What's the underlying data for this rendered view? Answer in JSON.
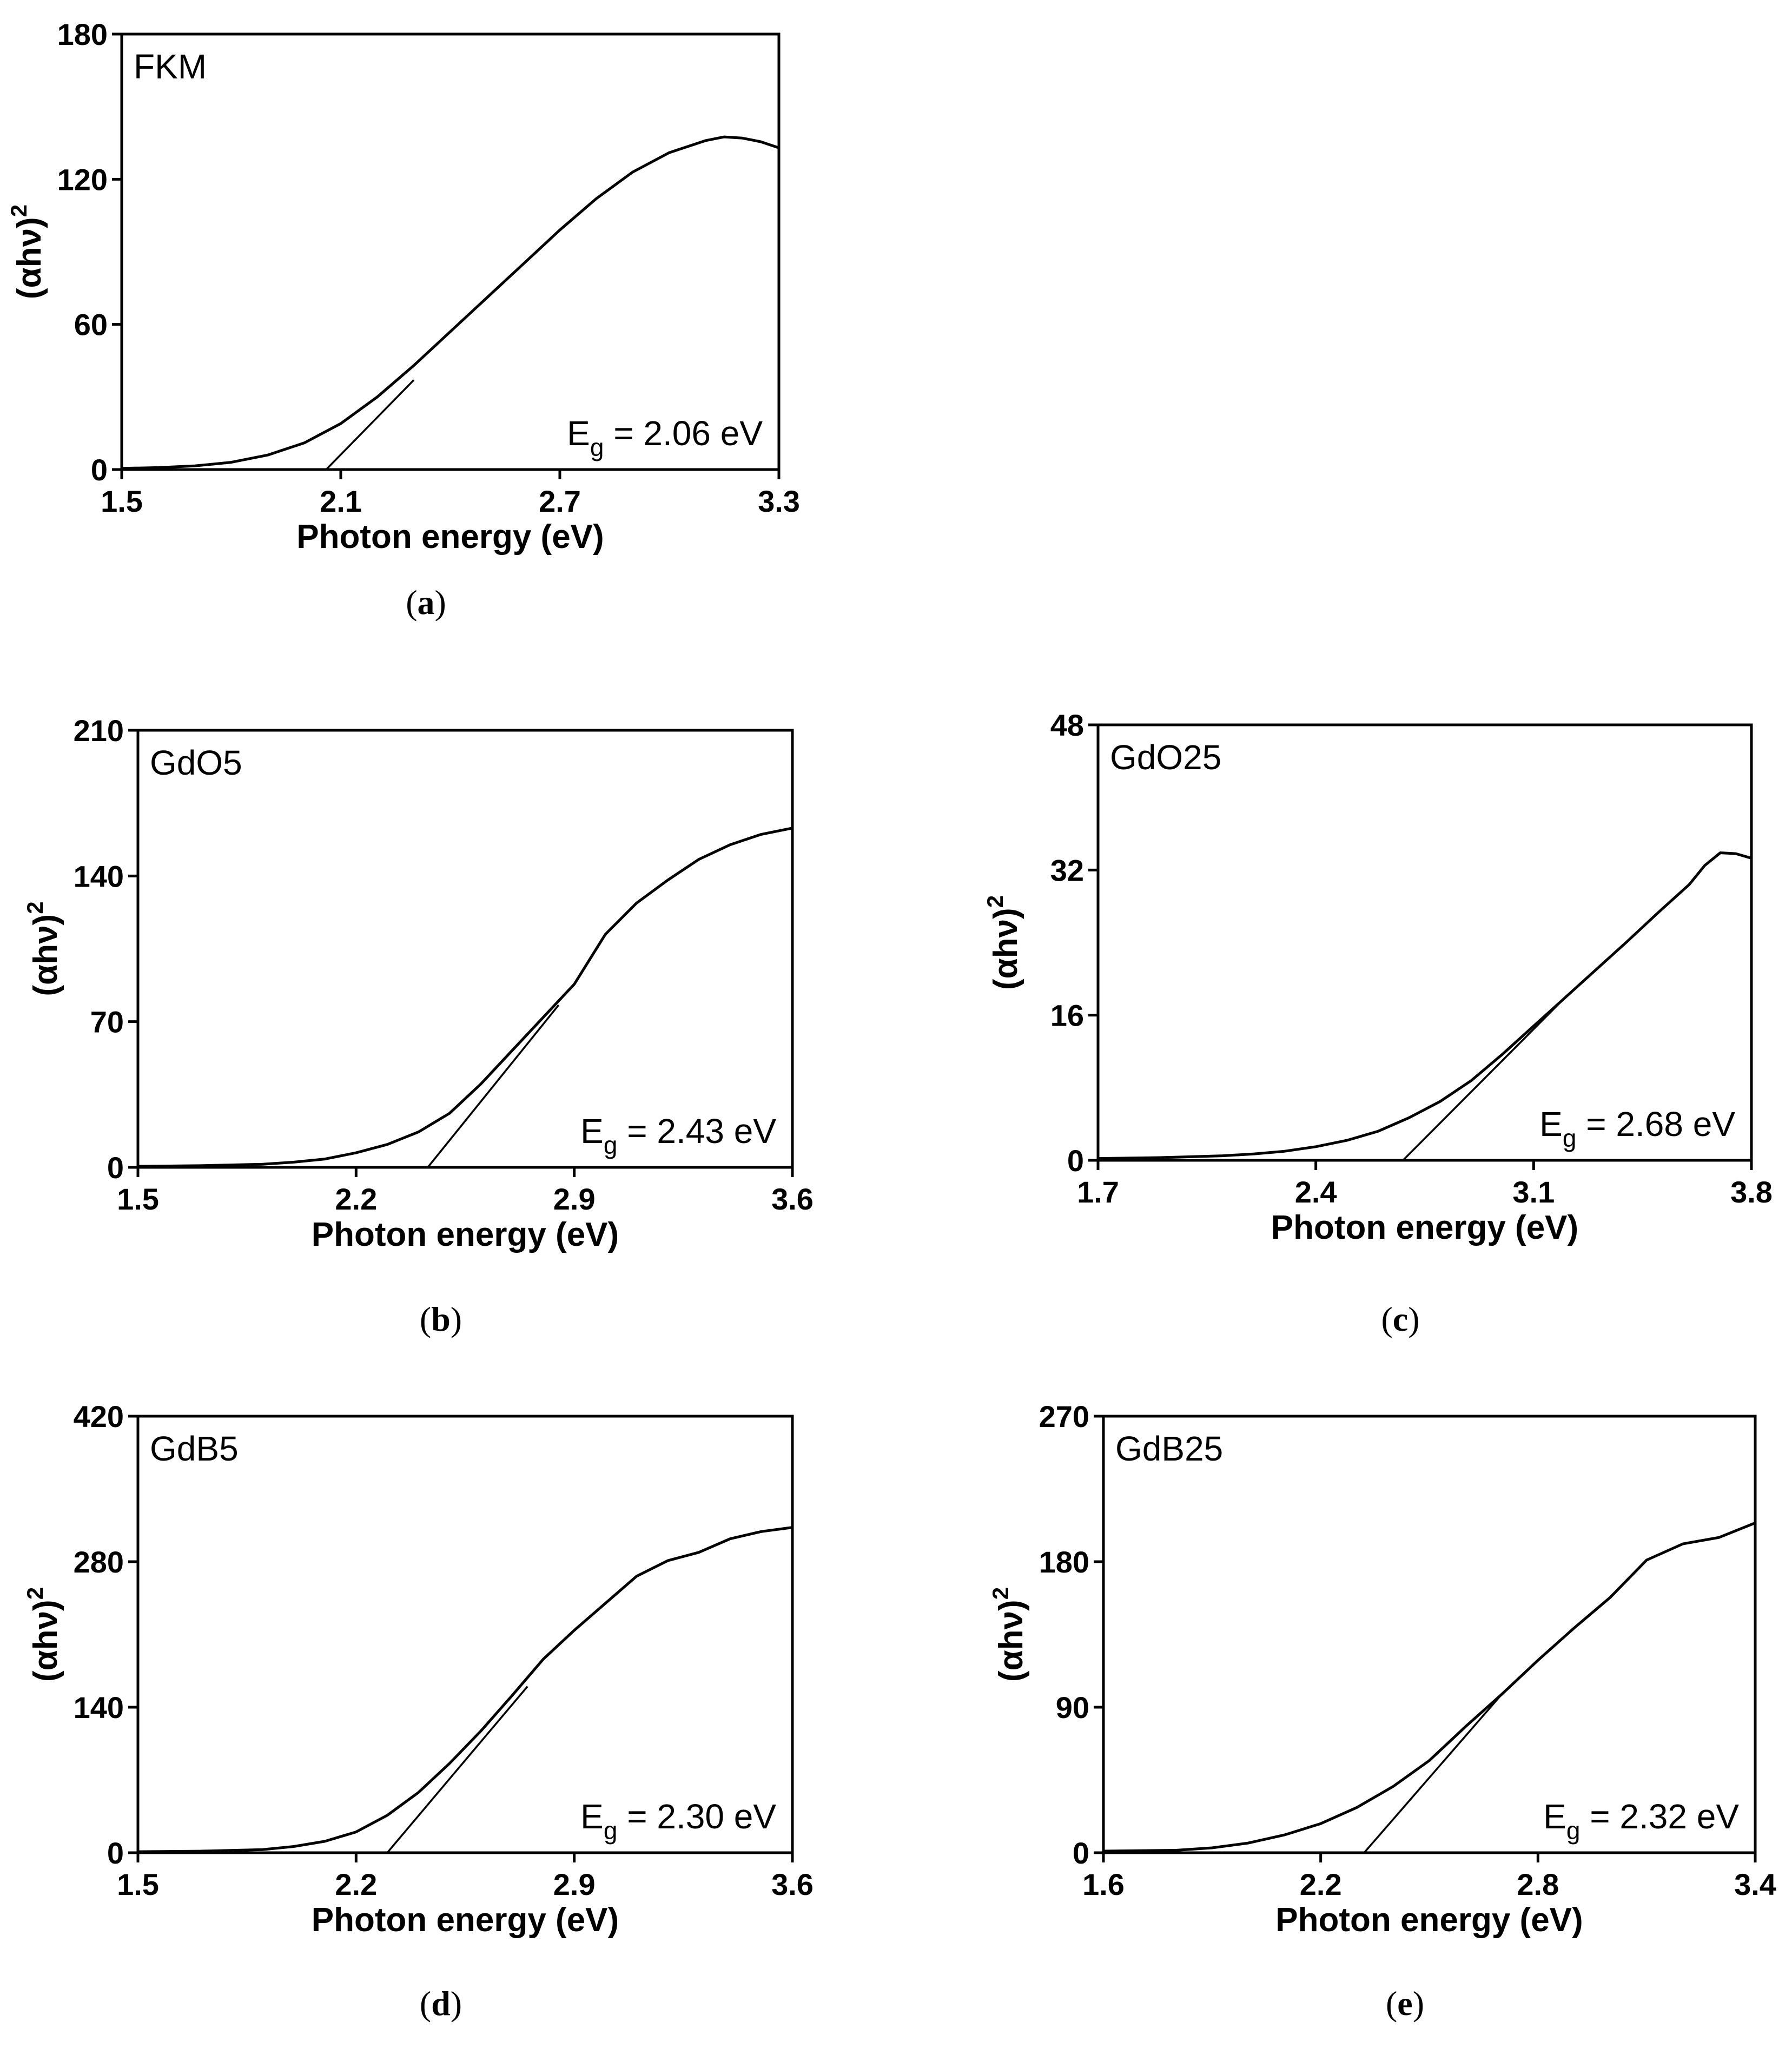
{
  "chart_data": [
    {
      "id": "a",
      "type": "line",
      "panel_label": "FKM",
      "caption_letter": "a",
      "xlabel": "Photon energy (eV)",
      "ylabel_base": "(αhν)",
      "ylabel_sup": "2",
      "eg_prefix": "E",
      "eg_sub": "g",
      "eg_value": " = 2.06 eV",
      "xlim": [
        1.5,
        3.3
      ],
      "ylim": [
        0,
        180
      ],
      "xticks": [
        "1.5",
        "2.1",
        "2.7",
        "3.3"
      ],
      "yticks": [
        "0",
        "60",
        "120",
        "180"
      ],
      "series": [
        {
          "name": "curve",
          "x": [
            1.5,
            1.6,
            1.7,
            1.8,
            1.9,
            2.0,
            2.1,
            2.2,
            2.3,
            2.4,
            2.5,
            2.6,
            2.7,
            2.8,
            2.9,
            3.0,
            3.1,
            3.15,
            3.2,
            3.25,
            3.3
          ],
          "y": [
            0.5,
            0.8,
            1.5,
            3,
            6,
            11,
            19,
            30,
            43,
            57,
            71,
            85,
            99,
            112,
            123,
            131,
            136,
            137.5,
            137,
            135.5,
            133
          ]
        }
      ],
      "fit_line": {
        "x": [
          2.06,
          2.3
        ],
        "y": [
          0,
          37
        ]
      }
    },
    {
      "id": "b",
      "type": "line",
      "panel_label": "GdO5",
      "caption_letter": "b",
      "xlabel": "Photon energy (eV)",
      "ylabel_base": "(αhν)",
      "ylabel_sup": "2",
      "eg_prefix": "E",
      "eg_sub": "g",
      "eg_value": " = 2.43 eV",
      "xlim": [
        1.5,
        3.6
      ],
      "ylim": [
        0,
        210
      ],
      "xticks": [
        "1.5",
        "2.2",
        "2.9",
        "3.6"
      ],
      "yticks": [
        "0",
        "70",
        "140",
        "210"
      ],
      "series": [
        {
          "name": "curve",
          "x": [
            1.5,
            1.7,
            1.9,
            2.0,
            2.1,
            2.2,
            2.3,
            2.4,
            2.5,
            2.6,
            2.7,
            2.8,
            2.9,
            3.0,
            3.1,
            3.2,
            3.3,
            3.4,
            3.5,
            3.6
          ],
          "y": [
            0.5,
            0.8,
            1.5,
            2.5,
            4,
            7,
            11,
            17,
            26,
            40,
            56,
            72,
            88,
            112,
            127,
            138,
            148,
            155,
            160,
            163
          ]
        }
      ],
      "fit_line": {
        "x": [
          2.43,
          2.85
        ],
        "y": [
          0,
          78
        ]
      }
    },
    {
      "id": "c",
      "type": "line",
      "panel_label": "GdO25",
      "caption_letter": "c",
      "xlabel": "Photon energy (eV)",
      "ylabel_base": "(αhν)",
      "ylabel_sup": "2",
      "eg_prefix": "E",
      "eg_sub": "g",
      "eg_value": " = 2.68 eV",
      "xlim": [
        1.7,
        3.8
      ],
      "ylim": [
        0,
        48
      ],
      "xticks": [
        "1.7",
        "2.4",
        "3.1",
        "3.8"
      ],
      "yticks": [
        "0",
        "16",
        "32",
        "48"
      ],
      "series": [
        {
          "name": "curve",
          "x": [
            1.7,
            1.9,
            2.1,
            2.2,
            2.3,
            2.4,
            2.5,
            2.6,
            2.7,
            2.8,
            2.9,
            3.0,
            3.1,
            3.2,
            3.3,
            3.4,
            3.5,
            3.6,
            3.65,
            3.7,
            3.75,
            3.8
          ],
          "y": [
            0.2,
            0.3,
            0.5,
            0.7,
            1.0,
            1.5,
            2.2,
            3.2,
            4.7,
            6.5,
            8.8,
            11.7,
            14.8,
            17.9,
            21.0,
            24.1,
            27.3,
            30.4,
            32.5,
            33.9,
            33.8,
            33.3
          ]
        }
      ],
      "fit_line": {
        "x": [
          2.68,
          3.2
        ],
        "y": [
          0,
          17.9
        ]
      }
    },
    {
      "id": "d",
      "type": "line",
      "panel_label": "GdB5",
      "caption_letter": "d",
      "xlabel": "Photon energy (eV)",
      "ylabel_base": "(αhν)",
      "ylabel_sup": "2",
      "eg_prefix": "E",
      "eg_sub": "g",
      "eg_value": " = 2.30 eV",
      "xlim": [
        1.5,
        3.6
      ],
      "ylim": [
        0,
        420
      ],
      "xticks": [
        "1.5",
        "2.2",
        "2.9",
        "3.6"
      ],
      "yticks": [
        "0",
        "140",
        "280",
        "420"
      ],
      "series": [
        {
          "name": "curve",
          "x": [
            1.5,
            1.7,
            1.9,
            2.0,
            2.1,
            2.2,
            2.3,
            2.4,
            2.5,
            2.6,
            2.7,
            2.8,
            2.9,
            3.0,
            3.1,
            3.2,
            3.3,
            3.4,
            3.5,
            3.6
          ],
          "y": [
            1,
            1.5,
            3,
            6,
            11,
            20,
            36,
            58,
            86,
            117,
            151,
            186,
            214,
            240,
            266,
            281,
            289,
            302,
            309,
            313
          ]
        }
      ],
      "fit_line": {
        "x": [
          2.3,
          2.75
        ],
        "y": [
          0,
          160
        ]
      }
    },
    {
      "id": "e",
      "type": "line",
      "panel_label": "GdB25",
      "caption_letter": "e",
      "xlabel": "Photon energy (eV)",
      "ylabel_base": "(αhν)",
      "ylabel_sup": "2",
      "eg_prefix": "E",
      "eg_sub": "g",
      "eg_value": " = 2.32 eV",
      "xlim": [
        1.6,
        3.4
      ],
      "ylim": [
        0,
        270
      ],
      "xticks": [
        "1.6",
        "2.2",
        "2.8",
        "3.4"
      ],
      "yticks": [
        "0",
        "90",
        "180",
        "270"
      ],
      "series": [
        {
          "name": "curve",
          "x": [
            1.6,
            1.8,
            1.9,
            2.0,
            2.1,
            2.2,
            2.3,
            2.4,
            2.5,
            2.6,
            2.7,
            2.8,
            2.9,
            3.0,
            3.1,
            3.2,
            3.3,
            3.4
          ],
          "y": [
            1,
            1.5,
            3,
            6,
            11,
            18,
            28,
            41,
            57,
            78,
            98,
            119,
            139,
            158,
            181,
            191,
            195,
            204
          ]
        }
      ],
      "fit_line": {
        "x": [
          2.32,
          2.7
        ],
        "y": [
          0,
          98
        ]
      }
    }
  ]
}
